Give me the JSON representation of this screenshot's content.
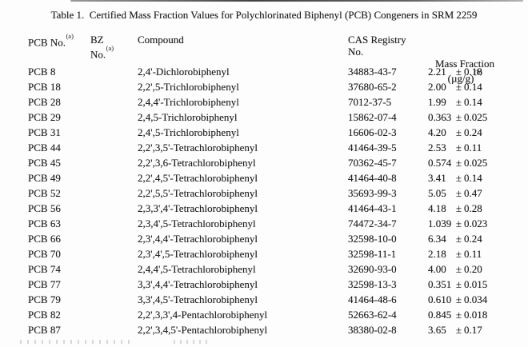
{
  "page": {
    "background_color": "#fdfdfd",
    "text_color": "#1c1c1c"
  },
  "title": "Table 1.  Certified Mass Fraction Values for Polychlorinated Biphenyl (PCB) Congeners in SRM 2259",
  "table": {
    "pm_symbol": "±",
    "columns": {
      "pcb": {
        "line1": "PCB No.",
        "sup1": "(a)"
      },
      "bz": {
        "line1": "BZ",
        "line2": "No.",
        "sup2": "(a)"
      },
      "compound": {
        "line1": "Compound"
      },
      "cas": {
        "line1": "CAS Registry",
        "line2": "No."
      },
      "mass": {
        "line1": "Mass Fraction",
        "line2": "(µg/g)",
        "sup2": "(b)"
      }
    },
    "rows": [
      {
        "pcb": "PCB 8",
        "bz": "",
        "compound": "2,4'-Dichlorobiphenyl",
        "cas": "34883-43-7",
        "mass_value": "2.21",
        "mass_uncertainty": "0.18"
      },
      {
        "pcb": "PCB 18",
        "bz": "",
        "compound": "2,2',5-Trichlorobiphenyl",
        "cas": "37680-65-2",
        "mass_value": "2.00",
        "mass_uncertainty": "0.14"
      },
      {
        "pcb": "PCB 28",
        "bz": "",
        "compound": "2,4,4'-Trichlorobiphenyl",
        "cas": "7012-37-5",
        "mass_value": "1.99",
        "mass_uncertainty": "0.14"
      },
      {
        "pcb": "PCB 29",
        "bz": "",
        "compound": "2,4,5-Trichlorobiphenyl",
        "cas": "15862-07-4",
        "mass_value": "0.363",
        "mass_uncertainty": "0.025"
      },
      {
        "pcb": "PCB 31",
        "bz": "",
        "compound": "2,4',5-Trichlorobiphenyl",
        "cas": "16606-02-3",
        "mass_value": "4.20",
        "mass_uncertainty": "0.24"
      },
      {
        "pcb": "PCB 44",
        "bz": "",
        "compound": "2,2',3,5'-Tetrachlorobiphenyl",
        "cas": "41464-39-5",
        "mass_value": "2.53",
        "mass_uncertainty": "0.11"
      },
      {
        "pcb": "PCB 45",
        "bz": "",
        "compound": "2,2',3,6-Tetrachlorobiphenyl",
        "cas": "70362-45-7",
        "mass_value": "0.574",
        "mass_uncertainty": "0.025"
      },
      {
        "pcb": "PCB 49",
        "bz": "",
        "compound": "2,2',4,5'-Tetrachlorobiphenyl",
        "cas": "41464-40-8",
        "mass_value": "3.41",
        "mass_uncertainty": "0.14"
      },
      {
        "pcb": "PCB 52",
        "bz": "",
        "compound": "2,2',5,5'-Tetrachlorobiphenyl",
        "cas": "35693-99-3",
        "mass_value": "5.05",
        "mass_uncertainty": "0.47"
      },
      {
        "pcb": "PCB 56",
        "bz": "",
        "compound": "2,3,3',4'-Tetrachlorobiphenyl",
        "cas": "41464-43-1",
        "mass_value": "4.18",
        "mass_uncertainty": "0.28"
      },
      {
        "pcb": "PCB 63",
        "bz": "",
        "compound": "2,3,4',5-Tetrachlorobiphenyl",
        "cas": "74472-34-7",
        "mass_value": "1.039",
        "mass_uncertainty": "0.023"
      },
      {
        "pcb": "PCB 66",
        "bz": "",
        "compound": "2,3',4,4'-Tetrachlorobiphenyl",
        "cas": "32598-10-0",
        "mass_value": "6.34",
        "mass_uncertainty": "0.24"
      },
      {
        "pcb": "PCB 70",
        "bz": "",
        "compound": "2,3',4',5-Tetrachlorobiphenyl",
        "cas": "32598-11-1",
        "mass_value": "2.18",
        "mass_uncertainty": "0.11"
      },
      {
        "pcb": "PCB 74",
        "bz": "",
        "compound": "2,4,4',5-Tetrachlorobiphenyl",
        "cas": "32690-93-0",
        "mass_value": "4.00",
        "mass_uncertainty": "0.20"
      },
      {
        "pcb": "PCB 77",
        "bz": "",
        "compound": "3,3',4,4'-Tetrachlorobiphenyl",
        "cas": "32598-13-3",
        "mass_value": "0.351",
        "mass_uncertainty": "0.015"
      },
      {
        "pcb": "PCB 79",
        "bz": "",
        "compound": "3,3',4,5'-Tetrachlorobiphenyl",
        "cas": "41464-48-6",
        "mass_value": "0.610",
        "mass_uncertainty": "0.034"
      },
      {
        "pcb": "PCB 82",
        "bz": "",
        "compound": "2,2',3,3',4-Pentachlorobiphenyl",
        "cas": "52663-62-4",
        "mass_value": "0.845",
        "mass_uncertainty": "0.018"
      },
      {
        "pcb": "PCB 87",
        "bz": "",
        "compound": "2,2',3,4,5'-Pentachlorobiphenyl",
        "cas": "38380-02-8",
        "mass_value": "3.65",
        "mass_uncertainty": "0.17"
      }
    ]
  }
}
